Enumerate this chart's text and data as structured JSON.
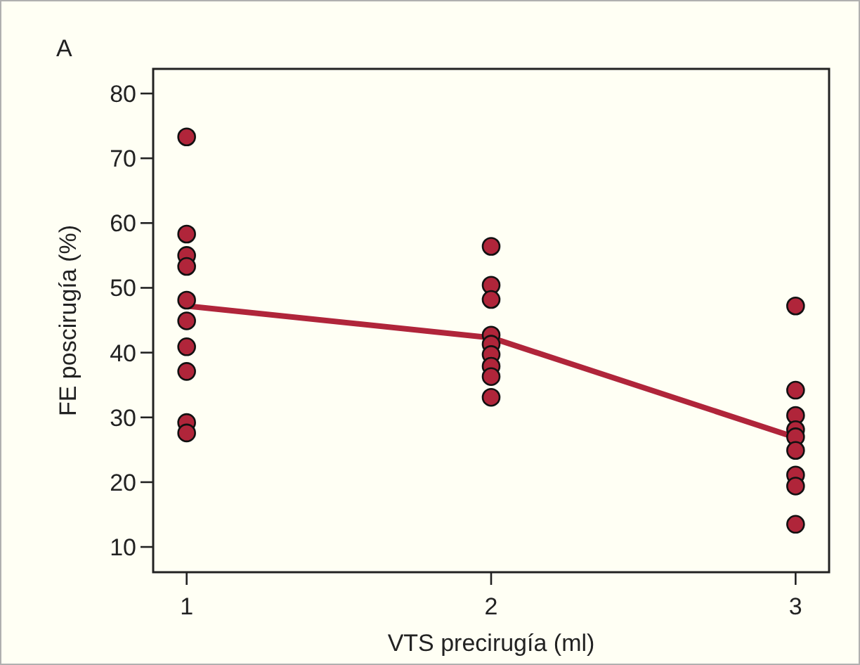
{
  "chart_data": {
    "type": "scatter",
    "xlabel": "VTS precirugía (ml)",
    "ylabel": "FE poscirugía (%)",
    "annotations": [
      "A"
    ],
    "xlim": [
      0.89,
      3.11
    ],
    "xticks": [
      1,
      2,
      3
    ],
    "ylim": [
      6.1,
      83.8
    ],
    "yticks": [
      10,
      20,
      30,
      40,
      50,
      60,
      70,
      80
    ],
    "grid": false,
    "marker": "circle",
    "series": [
      {
        "color": "#b0253a",
        "x": [
          1,
          1,
          1,
          1,
          1,
          1,
          1,
          1,
          1,
          1,
          2,
          2,
          2,
          2,
          2,
          2,
          2,
          2,
          2,
          3,
          3,
          3,
          3,
          3,
          3,
          3,
          3,
          3
        ],
        "values": [
          73.3,
          58.3,
          55,
          53.3,
          48.1,
          44.9,
          40.9,
          37.1,
          29.2,
          27.6,
          56.4,
          50.4,
          48.2,
          42.7,
          41.3,
          39.7,
          37.9,
          36.3,
          33.1,
          47.2,
          34.2,
          30.3,
          28.1,
          27,
          24.9,
          21.1,
          19.4,
          13.5
        ]
      },
      {
        "type": "line",
        "color": "#b0253a",
        "x": [
          1,
          2,
          3
        ],
        "values": [
          47.2,
          42.3,
          26.9
        ],
        "marker": "none"
      }
    ]
  }
}
